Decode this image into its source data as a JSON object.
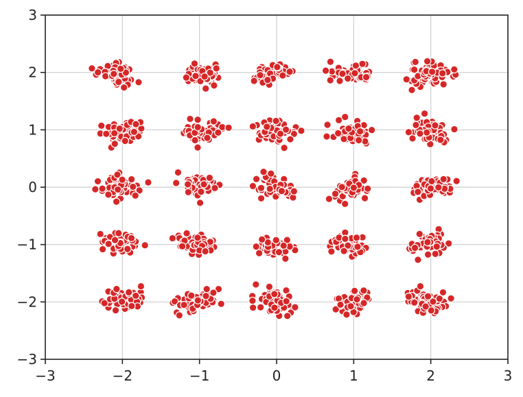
{
  "chart_data": {
    "type": "scatter",
    "title": "",
    "xlabel": "",
    "ylabel": "",
    "xlim": [
      -3,
      3
    ],
    "ylim": [
      -3,
      3
    ],
    "xticks": [
      -3,
      -2,
      -1,
      0,
      1,
      2,
      3
    ],
    "yticks": [
      -3,
      -2,
      -1,
      0,
      1,
      2,
      3
    ],
    "xtick_labels": [
      "−3",
      "−2",
      "−1",
      "0",
      "1",
      "2",
      "3"
    ],
    "ytick_labels": [
      "−3",
      "−2",
      "−1",
      "0",
      "1",
      "2",
      "3"
    ],
    "grid": true,
    "legend": "none",
    "marker_color": "#d62728",
    "marker_edge_color": "#ffffff",
    "series": [
      {
        "cluster_centers": [
          [
            -2.0,
            2.0
          ],
          [
            -1.0,
            2.0
          ],
          [
            0.0,
            2.0
          ],
          [
            1.0,
            2.0
          ],
          [
            2.0,
            2.0
          ],
          [
            -2.0,
            1.0
          ],
          [
            -1.0,
            1.0
          ],
          [
            0.0,
            1.0
          ],
          [
            1.0,
            1.0
          ],
          [
            2.0,
            1.0
          ],
          [
            -2.0,
            0.0
          ],
          [
            -1.0,
            0.0
          ],
          [
            0.0,
            0.0
          ],
          [
            1.0,
            0.0
          ],
          [
            2.0,
            0.0
          ],
          [
            -2.0,
            -1.0
          ],
          [
            -1.0,
            -1.0
          ],
          [
            0.0,
            -1.0
          ],
          [
            1.0,
            -1.0
          ],
          [
            2.0,
            -1.0
          ],
          [
            -2.0,
            -2.0
          ],
          [
            -1.0,
            -2.0
          ],
          [
            0.0,
            -2.0
          ],
          [
            1.0,
            -2.0
          ],
          [
            2.0,
            -2.0
          ]
        ],
        "points_per_cluster": 60,
        "cluster_spread": [
          0.13,
          0.09
        ]
      }
    ]
  }
}
